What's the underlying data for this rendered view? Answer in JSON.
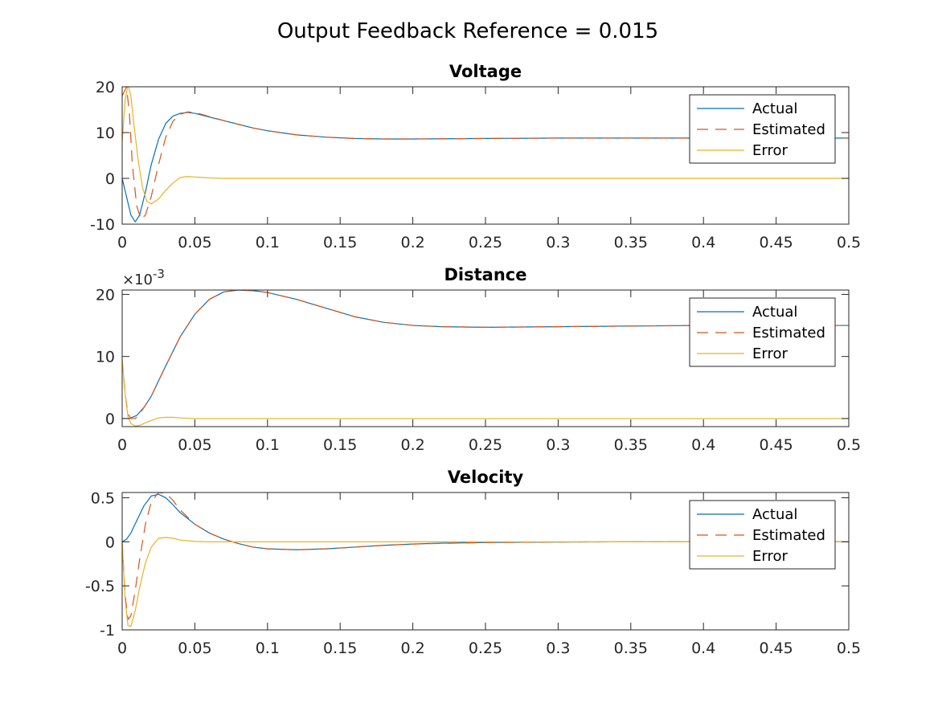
{
  "figure": {
    "title": "Output Feedback Reference = 0.015"
  },
  "legend": {
    "placement": "top-right",
    "entries": [
      "Actual",
      "Estimated",
      "Error"
    ]
  },
  "colors": {
    "actual": "#0072BD",
    "estimated": "#D95319",
    "error": "#EDB120",
    "axes": "#262626"
  },
  "chart_data": [
    {
      "type": "line",
      "title": "Voltage",
      "xlabel": "",
      "ylabel": "",
      "xlim": [
        0,
        0.5
      ],
      "ylim": [
        -10,
        20
      ],
      "xticks": [
        0,
        0.05,
        0.1,
        0.15,
        0.2,
        0.25,
        0.3,
        0.35,
        0.4,
        0.45,
        0.5
      ],
      "xtick_labels": [
        "0",
        "0.05",
        "0.1",
        "0.15",
        "0.2",
        "0.25",
        "0.3",
        "0.35",
        "0.4",
        "0.45",
        "0.5"
      ],
      "yticks": [
        -10,
        0,
        10,
        20
      ],
      "ytick_labels": [
        "-10",
        "0",
        "10",
        "20"
      ],
      "exponent_label": "",
      "legend_placement": "top-right",
      "series": [
        {
          "name": "Actual",
          "style": "solid",
          "x": [
            0,
            0.003,
            0.006,
            0.009,
            0.012,
            0.016,
            0.02,
            0.025,
            0.03,
            0.035,
            0.04,
            0.045,
            0.05,
            0.06,
            0.07,
            0.08,
            0.09,
            0.1,
            0.12,
            0.14,
            0.16,
            0.18,
            0.2,
            0.25,
            0.3,
            0.35,
            0.4,
            0.45,
            0.5
          ],
          "y": [
            0,
            -4,
            -8,
            -9.5,
            -8,
            -3,
            3,
            8.5,
            12,
            13.6,
            14.2,
            14.4,
            14.2,
            13.4,
            12.6,
            11.8,
            11,
            10.4,
            9.5,
            9,
            8.7,
            8.6,
            8.6,
            8.7,
            8.8,
            8.8,
            8.8,
            8.8,
            8.8
          ]
        },
        {
          "name": "Estimated",
          "style": "dashed",
          "x": [
            0,
            0.003,
            0.005,
            0.007,
            0.01,
            0.013,
            0.016,
            0.02,
            0.025,
            0.03,
            0.035,
            0.04,
            0.045,
            0.05,
            0.06,
            0.07,
            0.08,
            0.09,
            0.1,
            0.12,
            0.14,
            0.16,
            0.18,
            0.2,
            0.25,
            0.3,
            0.35,
            0.4,
            0.45,
            0.5
          ],
          "y": [
            18,
            20,
            14,
            3,
            -6,
            -9,
            -8,
            -4,
            3,
            9,
            12.5,
            14,
            14.5,
            14.4,
            13.5,
            12.6,
            11.8,
            11,
            10.4,
            9.5,
            9,
            8.7,
            8.6,
            8.6,
            8.7,
            8.8,
            8.8,
            8.8,
            8.8,
            8.8
          ]
        },
        {
          "name": "Error",
          "style": "solid",
          "x": [
            0,
            0.002,
            0.004,
            0.006,
            0.008,
            0.011,
            0.014,
            0.017,
            0.02,
            0.025,
            0.03,
            0.035,
            0.04,
            0.045,
            0.05,
            0.055,
            0.06,
            0.07,
            0.08,
            0.1,
            0.2,
            0.3,
            0.4,
            0.5
          ],
          "y": [
            8,
            17,
            20.5,
            18,
            12,
            4,
            -2,
            -5,
            -5.6,
            -4.5,
            -2.6,
            -1,
            0.2,
            0.4,
            0.3,
            0.2,
            0.1,
            0,
            0,
            0,
            0,
            0,
            0,
            0
          ]
        }
      ]
    },
    {
      "type": "line",
      "title": "Distance",
      "xlabel": "",
      "ylabel": "",
      "xlim": [
        0,
        0.5
      ],
      "ylim": [
        -0.0013,
        0.0207
      ],
      "xticks": [
        0,
        0.05,
        0.1,
        0.15,
        0.2,
        0.25,
        0.3,
        0.35,
        0.4,
        0.45,
        0.5
      ],
      "xtick_labels": [
        "0",
        "0.05",
        "0.1",
        "0.15",
        "0.2",
        "0.25",
        "0.3",
        "0.35",
        "0.4",
        "0.45",
        "0.5"
      ],
      "yticks": [
        0,
        0.01,
        0.02
      ],
      "ytick_labels": [
        "0",
        "10",
        "20"
      ],
      "exponent_label": "×10",
      "exponent_power": "-3",
      "legend_placement": "top-right",
      "series": [
        {
          "name": "Actual",
          "style": "solid",
          "x": [
            0,
            0.005,
            0.01,
            0.015,
            0.02,
            0.03,
            0.04,
            0.05,
            0.06,
            0.07,
            0.08,
            0.09,
            0.1,
            0.12,
            0.14,
            0.16,
            0.18,
            0.2,
            0.22,
            0.25,
            0.3,
            0.35,
            0.4,
            0.45,
            0.5
          ],
          "y": [
            0,
            0,
            0.0005,
            0.0018,
            0.0036,
            0.0085,
            0.0132,
            0.0168,
            0.0192,
            0.0204,
            0.0207,
            0.0206,
            0.0203,
            0.0192,
            0.0178,
            0.0164,
            0.0155,
            0.015,
            0.0148,
            0.0147,
            0.0148,
            0.0149,
            0.015,
            0.015,
            0.015
          ]
        },
        {
          "name": "Estimated",
          "style": "dashed",
          "x": [
            0,
            0.002,
            0.004,
            0.006,
            0.009,
            0.012,
            0.015,
            0.02,
            0.03,
            0.04,
            0.05,
            0.06,
            0.07,
            0.08,
            0.09,
            0.1,
            0.12,
            0.14,
            0.16,
            0.18,
            0.2,
            0.22,
            0.25,
            0.3,
            0.35,
            0.4,
            0.45,
            0.5
          ],
          "y": [
            0.0095,
            0.004,
            0.0008,
            0,
            0,
            0.0007,
            0.0018,
            0.0036,
            0.0085,
            0.0132,
            0.0168,
            0.0192,
            0.0204,
            0.0207,
            0.0206,
            0.0203,
            0.0192,
            0.0178,
            0.0164,
            0.0155,
            0.015,
            0.0148,
            0.0147,
            0.0148,
            0.0149,
            0.015,
            0.015,
            0.015
          ]
        },
        {
          "name": "Error",
          "style": "solid",
          "x": [
            0,
            0.002,
            0.004,
            0.006,
            0.009,
            0.012,
            0.016,
            0.02,
            0.025,
            0.03,
            0.035,
            0.04,
            0.05,
            0.07,
            0.1,
            0.2,
            0.3,
            0.4,
            0.5
          ],
          "y": [
            0.0095,
            0.004,
            0.0003,
            -0.0008,
            -0.0012,
            -0.0011,
            -0.0007,
            -0.0003,
            0.0001,
            0.0002,
            0.0002,
            0.0001,
            0,
            0,
            0,
            0,
            0,
            0,
            0
          ]
        }
      ]
    },
    {
      "type": "line",
      "title": "Velocity",
      "xlabel": "",
      "ylabel": "",
      "xlim": [
        0,
        0.5
      ],
      "ylim": [
        -1,
        0.56
      ],
      "xticks": [
        0,
        0.05,
        0.1,
        0.15,
        0.2,
        0.25,
        0.3,
        0.35,
        0.4,
        0.45,
        0.5
      ],
      "xtick_labels": [
        "0",
        "0.05",
        "0.1",
        "0.15",
        "0.2",
        "0.25",
        "0.3",
        "0.35",
        "0.4",
        "0.45",
        "0.5"
      ],
      "yticks": [
        -1,
        -0.5,
        0,
        0.5
      ],
      "ytick_labels": [
        "-1",
        "-0.5",
        "0",
        "0.5"
      ],
      "exponent_label": "",
      "legend_placement": "top-right",
      "series": [
        {
          "name": "Actual",
          "style": "solid",
          "x": [
            0,
            0.003,
            0.006,
            0.01,
            0.015,
            0.02,
            0.025,
            0.03,
            0.035,
            0.04,
            0.05,
            0.06,
            0.07,
            0.08,
            0.09,
            0.1,
            0.12,
            0.14,
            0.16,
            0.18,
            0.2,
            0.22,
            0.25,
            0.3,
            0.35,
            0.4,
            0.45,
            0.5
          ],
          "y": [
            0,
            0.03,
            0.1,
            0.24,
            0.41,
            0.52,
            0.54,
            0.5,
            0.42,
            0.33,
            0.2,
            0.1,
            0.03,
            -0.02,
            -0.06,
            -0.08,
            -0.09,
            -0.08,
            -0.06,
            -0.04,
            -0.025,
            -0.015,
            -0.008,
            -0.002,
            0,
            0,
            0,
            0
          ]
        },
        {
          "name": "Estimated",
          "style": "dashed",
          "x": [
            0,
            0.002,
            0.004,
            0.006,
            0.009,
            0.012,
            0.016,
            0.02,
            0.025,
            0.03,
            0.035,
            0.04,
            0.05,
            0.06,
            0.07,
            0.08,
            0.09,
            0.1,
            0.12,
            0.14,
            0.16,
            0.18,
            0.2,
            0.25,
            0.3,
            0.35,
            0.4,
            0.45,
            0.5
          ],
          "y": [
            0,
            -0.6,
            -0.88,
            -0.84,
            -0.55,
            -0.2,
            0.2,
            0.45,
            0.56,
            0.55,
            0.47,
            0.36,
            0.2,
            0.1,
            0.03,
            -0.02,
            -0.06,
            -0.08,
            -0.09,
            -0.08,
            -0.06,
            -0.04,
            -0.025,
            -0.008,
            -0.002,
            0,
            0,
            0,
            0
          ]
        },
        {
          "name": "Error",
          "style": "solid",
          "x": [
            0,
            0.002,
            0.004,
            0.006,
            0.009,
            0.012,
            0.016,
            0.02,
            0.025,
            0.03,
            0.035,
            0.04,
            0.05,
            0.06,
            0.08,
            0.1,
            0.2,
            0.3,
            0.4,
            0.5
          ],
          "y": [
            0,
            -0.65,
            -0.95,
            -0.96,
            -0.78,
            -0.52,
            -0.24,
            -0.06,
            0.04,
            0.05,
            0.04,
            0.02,
            0.005,
            0,
            0,
            0,
            0,
            0,
            0,
            0
          ]
        }
      ]
    }
  ]
}
